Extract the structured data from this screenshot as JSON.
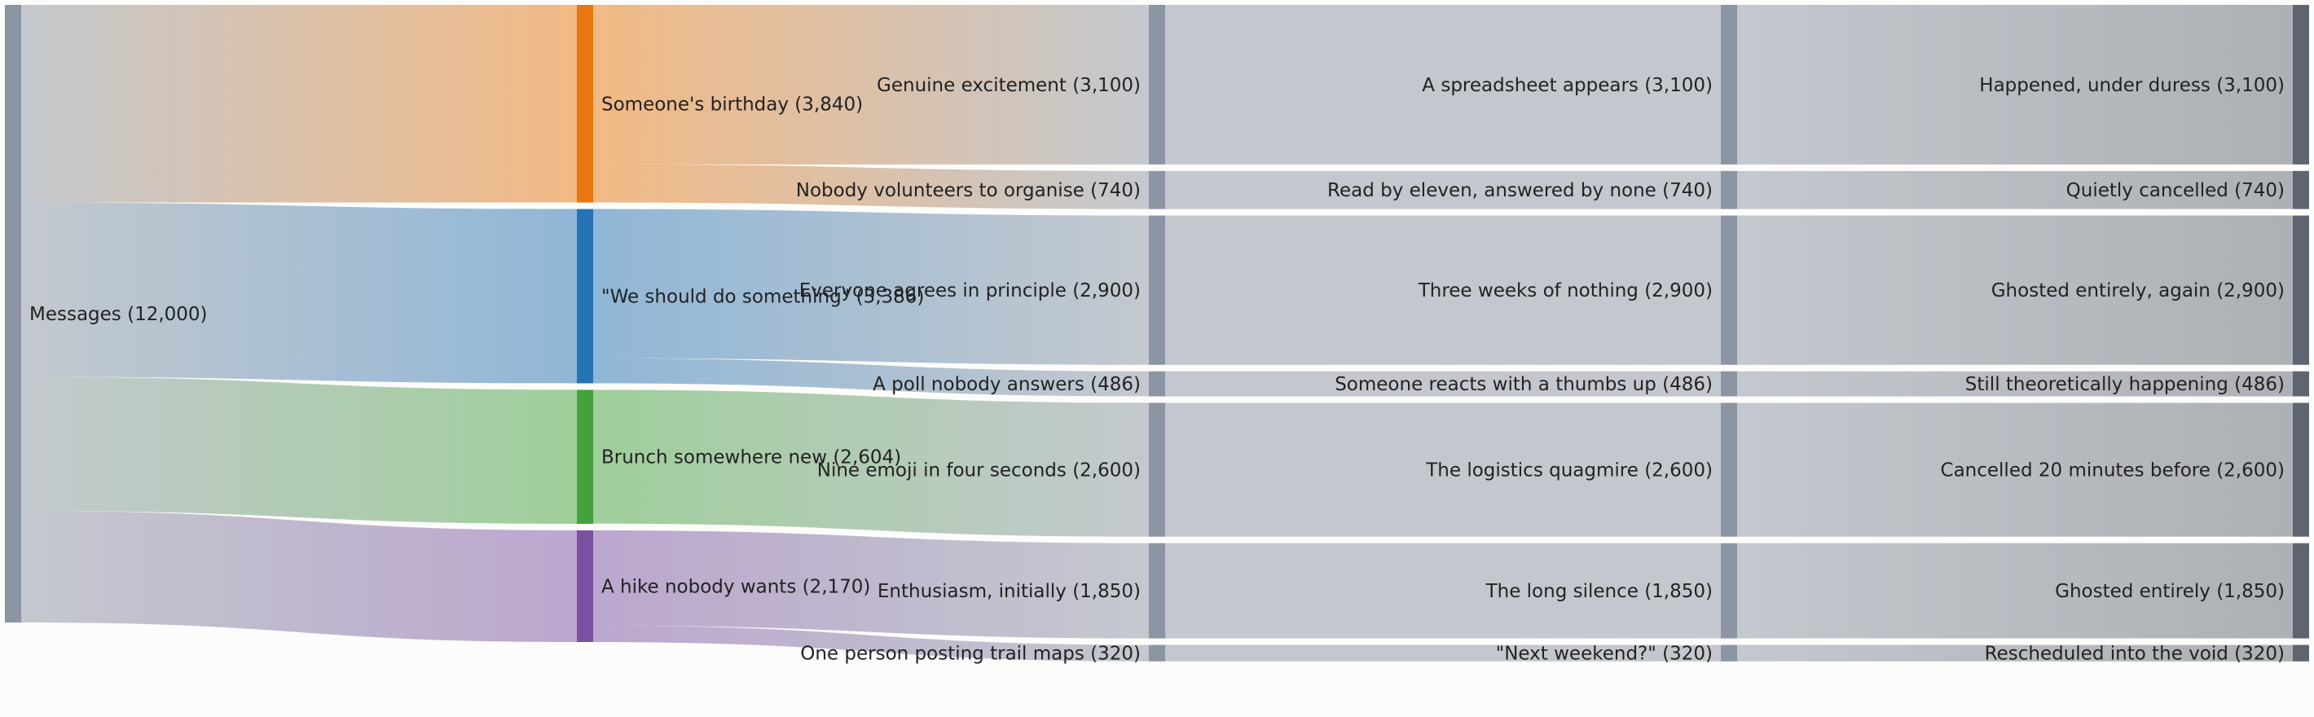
{
  "chart_data": {
    "type": "sankey",
    "title": "",
    "columns": [
      [
        {
          "id": "messages",
          "label": "Messages (12,000)",
          "value": 12000,
          "color": "#8c95a3"
        }
      ],
      [
        {
          "id": "birthday",
          "label": "Someone's birthday (3,840)",
          "value": 3840,
          "color": "#e8770f"
        },
        {
          "id": "should",
          "label": "\"We should do something\" (3,386)",
          "value": 3386,
          "color": "#2572b4"
        },
        {
          "id": "brunch",
          "label": "Brunch somewhere new (2,604)",
          "value": 2604,
          "color": "#43a23c"
        },
        {
          "id": "hike",
          "label": "A hike nobody wants (2,170)",
          "value": 2170,
          "color": "#7b52a3"
        }
      ],
      [
        {
          "id": "excite",
          "label": "Genuine excitement (3,100)",
          "value": 3100,
          "color": "#8c95a3"
        },
        {
          "id": "novol",
          "label": "Nobody volunteers to organise (740)",
          "value": 740,
          "color": "#8c95a3"
        },
        {
          "id": "agree",
          "label": "Everyone agrees in principle (2,900)",
          "value": 2900,
          "color": "#8c95a3"
        },
        {
          "id": "poll",
          "label": "A poll nobody answers (486)",
          "value": 486,
          "color": "#8c95a3"
        },
        {
          "id": "emoji",
          "label": "Nine emoji in four seconds (2,600)",
          "value": 2600,
          "color": "#8c95a3"
        },
        {
          "id": "enth",
          "label": "Enthusiasm, initially (1,850)",
          "value": 1850,
          "color": "#8c95a3"
        },
        {
          "id": "trail",
          "label": "One person posting trail maps (320)",
          "value": 320,
          "color": "#8c95a3"
        }
      ],
      [
        {
          "id": "spread",
          "label": "A spreadsheet appears (3,100)",
          "value": 3100,
          "color": "#8c95a3"
        },
        {
          "id": "read",
          "label": "Read by eleven, answered by none (740)",
          "value": 740,
          "color": "#8c95a3"
        },
        {
          "id": "three",
          "label": "Three weeks of nothing (2,900)",
          "value": 2900,
          "color": "#8c95a3"
        },
        {
          "id": "thumbs",
          "label": "Someone reacts with a thumbs up (486)",
          "value": 486,
          "color": "#8c95a3"
        },
        {
          "id": "logi",
          "label": "The logistics quagmire (2,600)",
          "value": 2600,
          "color": "#8c95a3"
        },
        {
          "id": "silence",
          "label": "The long silence (1,850)",
          "value": 1850,
          "color": "#8c95a3"
        },
        {
          "id": "nextwk",
          "label": "\"Next weekend?\" (320)",
          "value": 320,
          "color": "#8c95a3"
        }
      ],
      [
        {
          "id": "duress",
          "label": "Happened, under duress (3,100)",
          "value": 3100,
          "color": "#5e6570"
        },
        {
          "id": "quiet",
          "label": "Quietly cancelled (740)",
          "value": 740,
          "color": "#5e6570"
        },
        {
          "id": "again",
          "label": "Ghosted entirely, again (2,900)",
          "value": 2900,
          "color": "#5e6570"
        },
        {
          "id": "theo",
          "label": "Still theoretically happening (486)",
          "value": 486,
          "color": "#5e6570"
        },
        {
          "id": "c20",
          "label": "Cancelled 20 minutes before (2,600)",
          "value": 2600,
          "color": "#5e6570"
        },
        {
          "id": "ghost",
          "label": "Ghosted entirely (1,850)",
          "value": 1850,
          "color": "#5e6570"
        },
        {
          "id": "void",
          "label": "Rescheduled into the void (320)",
          "value": 320,
          "color": "#5e6570"
        }
      ]
    ],
    "links": [
      {
        "source": "messages",
        "target": "birthday",
        "value": 3840
      },
      {
        "source": "messages",
        "target": "should",
        "value": 3386
      },
      {
        "source": "messages",
        "target": "brunch",
        "value": 2604
      },
      {
        "source": "messages",
        "target": "hike",
        "value": 2170
      },
      {
        "source": "birthday",
        "target": "excite",
        "value": 3100
      },
      {
        "source": "birthday",
        "target": "novol",
        "value": 740
      },
      {
        "source": "should",
        "target": "agree",
        "value": 2900
      },
      {
        "source": "should",
        "target": "poll",
        "value": 486
      },
      {
        "source": "brunch",
        "target": "emoji",
        "value": 2600
      },
      {
        "source": "hike",
        "target": "enth",
        "value": 1850
      },
      {
        "source": "hike",
        "target": "trail",
        "value": 320
      },
      {
        "source": "excite",
        "target": "spread",
        "value": 3100
      },
      {
        "source": "novol",
        "target": "read",
        "value": 740
      },
      {
        "source": "agree",
        "target": "three",
        "value": 2900
      },
      {
        "source": "poll",
        "target": "thumbs",
        "value": 486
      },
      {
        "source": "emoji",
        "target": "logi",
        "value": 2600
      },
      {
        "source": "enth",
        "target": "silence",
        "value": 1850
      },
      {
        "source": "trail",
        "target": "nextwk",
        "value": 320
      },
      {
        "source": "spread",
        "target": "duress",
        "value": 3100
      },
      {
        "source": "read",
        "target": "quiet",
        "value": 740
      },
      {
        "source": "three",
        "target": "again",
        "value": 2900
      },
      {
        "source": "thumbs",
        "target": "theo",
        "value": 486
      },
      {
        "source": "logi",
        "target": "c20",
        "value": 2600
      },
      {
        "source": "silence",
        "target": "ghost",
        "value": 1850
      },
      {
        "source": "nextwk",
        "target": "void",
        "value": 320
      }
    ]
  }
}
